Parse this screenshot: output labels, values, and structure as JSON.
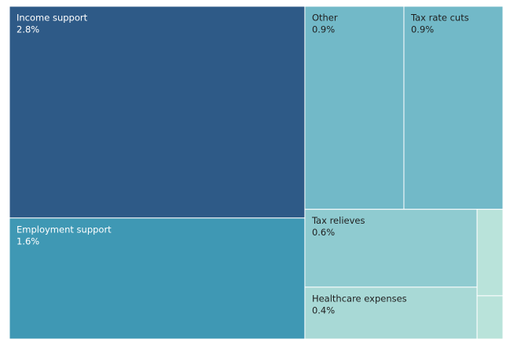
{
  "chart_data": {
    "type": "treemap",
    "categories": [
      "Income support",
      "Employment support",
      "Other",
      "Tax rate cuts",
      "Tax relieves",
      "Healthcare expenses",
      null,
      null
    ],
    "values": [
      2.8,
      1.6,
      0.9,
      0.9,
      0.6,
      0.4,
      0.1,
      0.05
    ],
    "value_labels": [
      "2.8%",
      "1.6%",
      "0.9%",
      "0.9%",
      "0.6%",
      "0.4%",
      null,
      null
    ],
    "colors": [
      "#2e5a87",
      "#3f98b4",
      "#72b9c8",
      "#72b9c8",
      "#8fcbd0",
      "#a8d9d6",
      "#b9e3da",
      "#b9e3da"
    ]
  }
}
